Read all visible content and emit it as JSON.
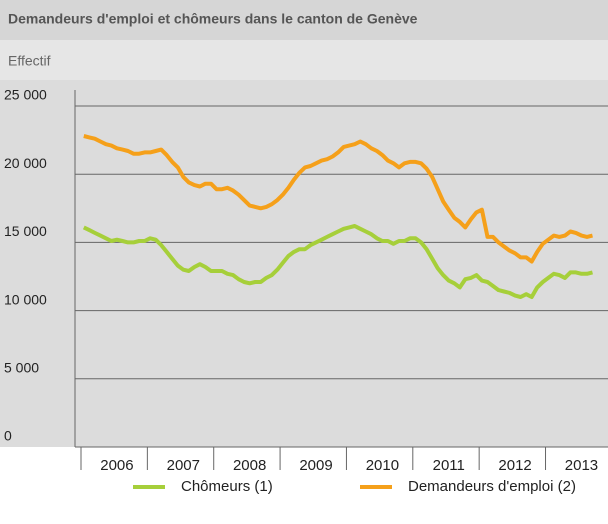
{
  "chart_data": {
    "type": "line",
    "title": "Demandeurs d'emploi et chômeurs dans le canton de Genève",
    "subtitle": "Effectif",
    "categories": [
      null,
      null,
      null,
      null,
      null,
      null,
      "2006",
      null,
      null,
      null,
      null,
      null,
      null,
      null,
      null,
      null,
      null,
      null,
      "2007",
      null,
      null,
      null,
      null,
      null,
      null,
      null,
      null,
      null,
      null,
      null,
      "2008",
      null,
      null,
      null,
      null,
      null,
      null,
      null,
      null,
      null,
      null,
      null,
      "2009",
      null,
      null,
      null,
      null,
      null,
      null,
      null,
      null,
      null,
      null,
      null,
      "2010",
      null,
      null,
      null,
      null,
      null,
      null,
      null,
      null,
      null,
      null,
      null,
      "2011",
      null,
      null,
      null,
      null,
      null,
      null,
      null,
      null,
      null,
      null,
      null,
      "2012",
      null,
      null,
      null,
      null,
      null,
      null,
      null,
      null,
      null,
      null,
      null,
      "2013",
      null,
      null
    ],
    "series": [
      {
        "name": "Chômeurs (1)",
        "color": "#a6cf3a",
        "values": [
          16100,
          15900,
          15700,
          15500,
          15300,
          15100,
          15200,
          15100,
          15000,
          15000,
          15100,
          15100,
          15300,
          15200,
          14800,
          14300,
          13800,
          13300,
          13000,
          12900,
          13200,
          13400,
          13200,
          12900,
          12900,
          12900,
          12700,
          12600,
          12300,
          12100,
          12000,
          12100,
          12100,
          12400,
          12600,
          13000,
          13500,
          14000,
          14300,
          14500,
          14500,
          14800,
          15000,
          15200,
          15400,
          15600,
          15800,
          16000,
          16100,
          16200,
          16000,
          15800,
          15600,
          15300,
          15100,
          15100,
          14900,
          15100,
          15100,
          15300,
          15300,
          15000,
          14500,
          13800,
          13100,
          12600,
          12200,
          12000,
          11700,
          12300,
          12400,
          12600,
          12200,
          12100,
          11800,
          11500,
          11400,
          11300,
          11100,
          11000,
          11200,
          11000,
          11700,
          12100,
          12400,
          12700,
          12600,
          12400,
          12800,
          12800,
          12700,
          12700,
          12800
        ]
      },
      {
        "name": "Demandeurs d'emploi (2)",
        "color": "#f5a01a",
        "values": [
          22800,
          22700,
          22600,
          22400,
          22200,
          22100,
          21900,
          21800,
          21700,
          21500,
          21500,
          21600,
          21600,
          21700,
          21800,
          21400,
          20900,
          20500,
          19800,
          19400,
          19200,
          19100,
          19300,
          19300,
          18900,
          18900,
          19000,
          18800,
          18500,
          18100,
          17700,
          17600,
          17500,
          17600,
          17800,
          18100,
          18500,
          19000,
          19600,
          20100,
          20500,
          20600,
          20800,
          21000,
          21100,
          21300,
          21600,
          22000,
          22100,
          22200,
          22400,
          22200,
          21900,
          21700,
          21400,
          21000,
          20800,
          20500,
          20800,
          20900,
          20900,
          20800,
          20400,
          19800,
          18900,
          18000,
          17400,
          16800,
          16500,
          16100,
          16700,
          17200,
          17400,
          15400,
          15400,
          15000,
          14700,
          14400,
          14200,
          13900,
          13900,
          13600,
          14300,
          14900,
          15200,
          15500,
          15400,
          15500,
          15800,
          15700,
          15500,
          15400,
          15500
        ]
      }
    ],
    "ylim": [
      0,
      25000
    ],
    "yticks": [
      0,
      {
        "value": 5000,
        "label": "5 000"
      },
      {
        "value": 10000,
        "label": "10 000"
      },
      {
        "value": 15000,
        "label": "15 000"
      },
      {
        "value": 20000,
        "label": "20 000"
      },
      {
        "value": 25000,
        "label": "25 000"
      }
    ],
    "grid": true
  }
}
